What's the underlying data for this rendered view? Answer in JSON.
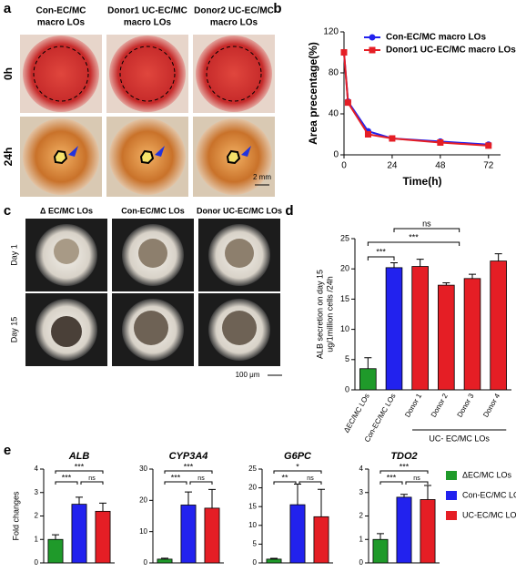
{
  "figure": {
    "panel_a": {
      "letter": "a",
      "columns": [
        [
          "Con-EC/MC",
          "macro LOs"
        ],
        [
          "Donor1 UC-EC/MC",
          "macro LOs"
        ],
        [
          "Donor2 UC-EC/MC",
          "macro LOs"
        ]
      ],
      "rows": [
        "0h",
        "24h"
      ],
      "scale_bar": "2 mm"
    },
    "panel_c": {
      "letter": "c",
      "columns": [
        "Δ EC/MC LOs",
        "Con-EC/MC LOs",
        "Donor UC-EC/MC LOs"
      ],
      "rows": [
        "Day 1",
        "Day 15"
      ],
      "scale_bar": "100 μm"
    }
  },
  "legend_e": [
    {
      "name": "ΔEC/MC LOs",
      "color": "#1f9a2a"
    },
    {
      "name": "Con-EC/MC LOs",
      "color": "#2222ee"
    },
    {
      "name": "UC-EC/MC LOs",
      "color": "#e51e25"
    }
  ],
  "chart_data": [
    {
      "type": "line",
      "panel": "b",
      "xlabel": "Time(h)",
      "ylabel": "Area precentage(%)",
      "x": [
        0,
        2,
        12,
        24,
        48,
        72
      ],
      "series": [
        {
          "name": "Con-EC/MC macro LOs",
          "color": "#2222ee",
          "marker": "circle",
          "values": [
            100,
            52,
            23,
            16,
            13,
            10
          ]
        },
        {
          "name": "Donor1 UC-EC/MC macro LOs",
          "color": "#e51e25",
          "marker": "square",
          "values": [
            100,
            51,
            20,
            16,
            12,
            9
          ]
        }
      ],
      "xlim": [
        0,
        78
      ],
      "xticks": [
        0,
        24,
        48,
        72
      ],
      "ylim": [
        0,
        120
      ],
      "yticks": [
        0,
        40,
        80,
        120
      ],
      "legend": "top-right"
    },
    {
      "type": "bar",
      "panel": "d",
      "ylabel": [
        "ALB secretion on day 15",
        "ug/1million cells /24h"
      ],
      "categories": [
        "ΔEC/MC LOs",
        "Con-EC/MC LOs",
        "Donor 1",
        "Donor 2",
        "Donor 3",
        "Donor 4"
      ],
      "values": [
        3.5,
        20.2,
        20.4,
        17.3,
        18.4,
        21.3
      ],
      "errors": [
        1.8,
        0.8,
        1.2,
        0.4,
        0.7,
        1.2
      ],
      "colors": [
        "#1f9a2a",
        "#2222ee",
        "#e51e25",
        "#e51e25",
        "#e51e25",
        "#e51e25"
      ],
      "group_label": "UC- EC/MC LOs",
      "significance": [
        "***",
        "***",
        "ns"
      ],
      "ylim": [
        0,
        25
      ],
      "yticks": [
        0,
        5,
        10,
        15,
        20,
        25
      ]
    },
    {
      "type": "bar",
      "panel": "e",
      "title": "ALB",
      "ylabel": "Fold changes",
      "values": [
        1.0,
        2.5,
        2.2
      ],
      "errors": [
        0.2,
        0.3,
        0.35
      ],
      "significance": [
        "***",
        "***",
        "ns"
      ],
      "ylim": [
        0,
        4
      ],
      "yticks": [
        0,
        1,
        2,
        3,
        4
      ]
    },
    {
      "type": "bar",
      "title": "CYP3A4",
      "values": [
        1.2,
        18.5,
        17.5
      ],
      "errors": [
        0.3,
        4.2,
        6
      ],
      "significance": [
        "***",
        "***",
        "ns"
      ],
      "ylim": [
        0,
        30
      ],
      "yticks": [
        0,
        10,
        20,
        30
      ]
    },
    {
      "type": "bar",
      "title": "G6PC",
      "values": [
        1.0,
        15.5,
        12.3
      ],
      "errors": [
        0.2,
        5.5,
        7.3
      ],
      "significance": [
        "*",
        "**",
        "ns"
      ],
      "ylim": [
        0,
        25
      ],
      "yticks": [
        0,
        5,
        10,
        15,
        20,
        25
      ]
    },
    {
      "type": "bar",
      "title": "TDO2",
      "values": [
        1.0,
        2.8,
        2.7
      ],
      "errors": [
        0.25,
        0.12,
        0.6
      ],
      "significance": [
        "***",
        "***",
        "ns"
      ],
      "ylim": [
        0,
        4
      ],
      "yticks": [
        0,
        1,
        2,
        3,
        4
      ]
    }
  ]
}
